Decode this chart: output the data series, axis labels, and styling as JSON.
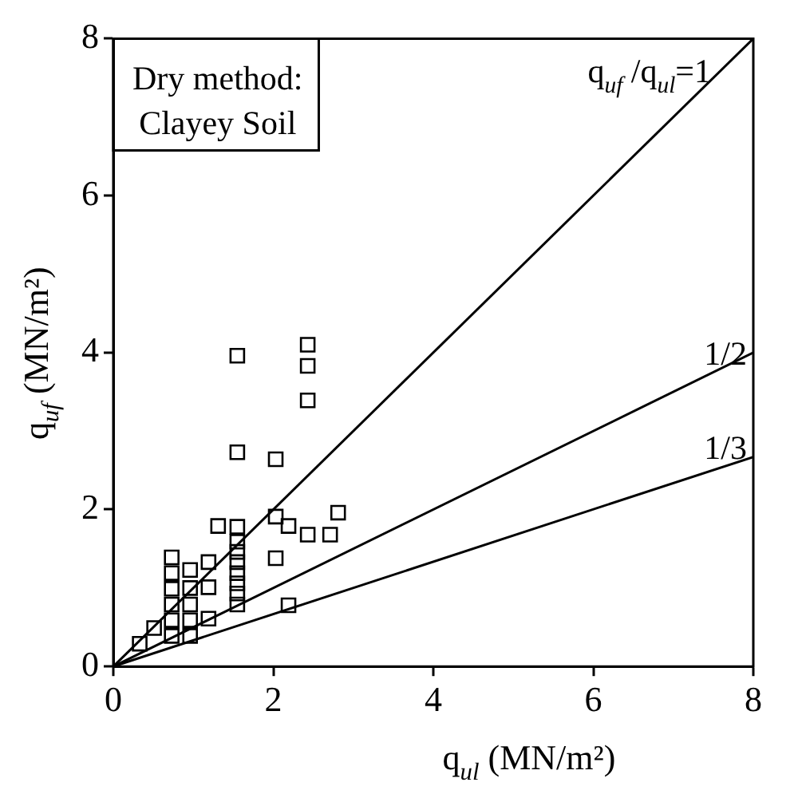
{
  "chart_data": {
    "type": "scatter",
    "xlabel": "q$_{ul}$ (MN/m²)",
    "ylabel": "q$_{uf}$ (MN/m²)",
    "xlim": [
      0,
      8
    ],
    "ylim": [
      0,
      8
    ],
    "xticks": [
      0,
      2,
      4,
      6,
      8
    ],
    "yticks": [
      0,
      2,
      4,
      6,
      8
    ],
    "grid": false,
    "legend": false,
    "marker": "square",
    "series": [
      {
        "color": "#000000",
        "x": [
          0.33,
          0.51,
          0.73,
          0.73,
          0.73,
          0.73,
          0.73,
          0.73,
          0.96,
          0.96,
          0.96,
          0.96,
          0.96,
          1.19,
          1.19,
          1.19,
          1.31,
          1.55,
          1.55,
          1.55,
          1.55,
          1.55,
          1.55,
          1.55,
          1.55,
          1.55,
          1.55,
          2.03,
          2.03,
          2.03,
          2.19,
          2.19,
          2.43,
          2.43,
          2.43,
          2.43,
          2.71,
          2.81
        ],
        "values": [
          0.29,
          0.49,
          1.39,
          1.19,
          0.99,
          0.79,
          0.59,
          0.39,
          1.23,
          1.0,
          0.79,
          0.59,
          0.39,
          1.33,
          1.01,
          0.61,
          1.79,
          3.96,
          2.73,
          1.78,
          1.59,
          1.46,
          1.33,
          1.19,
          1.06,
          0.93,
          0.79,
          2.64,
          1.91,
          1.38,
          1.79,
          0.78,
          4.1,
          3.83,
          3.39,
          1.68,
          1.68,
          1.96
        ]
      },
      {
        "type": "line",
        "name": "q$_{uf}$ /q$_{ul}$=1",
        "color": "#000000",
        "x": [
          0,
          8
        ],
        "values": [
          0,
          8
        ],
        "marker": "none"
      },
      {
        "type": "line",
        "name": "1/2",
        "color": "#000000",
        "x": [
          0,
          8
        ],
        "values": [
          0,
          4
        ],
        "marker": "none"
      },
      {
        "type": "line",
        "name": "1/3",
        "color": "#000000",
        "x": [
          0,
          8
        ],
        "values": [
          0,
          2.67
        ],
        "marker": "none"
      }
    ],
    "annotations": [
      "Dry method:\nClayey Soil"
    ]
  }
}
